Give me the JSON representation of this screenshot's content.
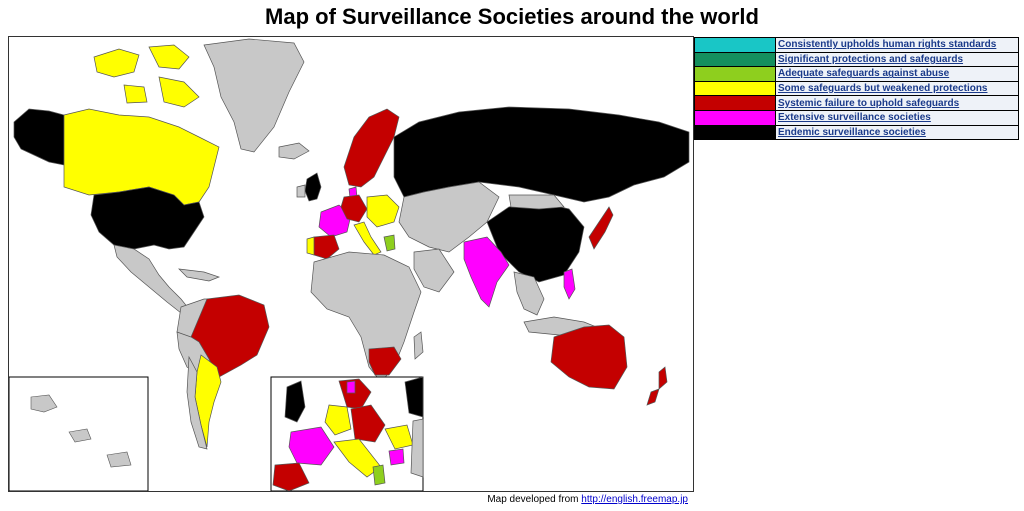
{
  "title": "Map of Surveillance Societies around the world",
  "legend": [
    {
      "label": "Consistently upholds human rights standards",
      "color": "#19c6c6"
    },
    {
      "label": "Significant protections and safeguards",
      "color": "#148f5e"
    },
    {
      "label": "Adequate safeguards against abuse",
      "color": "#8ecf1e"
    },
    {
      "label": "Some safeguards but weakened protections",
      "color": "#ffff00"
    },
    {
      "label": "Systemic failure to uphold safeguards",
      "color": "#c40000"
    },
    {
      "label": "Extensive surveillance societies",
      "color": "#ff00ff"
    },
    {
      "label": "Endemic surveillance societies",
      "color": "#000000"
    }
  ],
  "credit": {
    "prefix": "Map developed from",
    "link_text": "http://english.freemap.jp"
  },
  "colors": {
    "ocean": "#ffffff",
    "unrated": "#c8c8c8",
    "border": "#555555"
  }
}
